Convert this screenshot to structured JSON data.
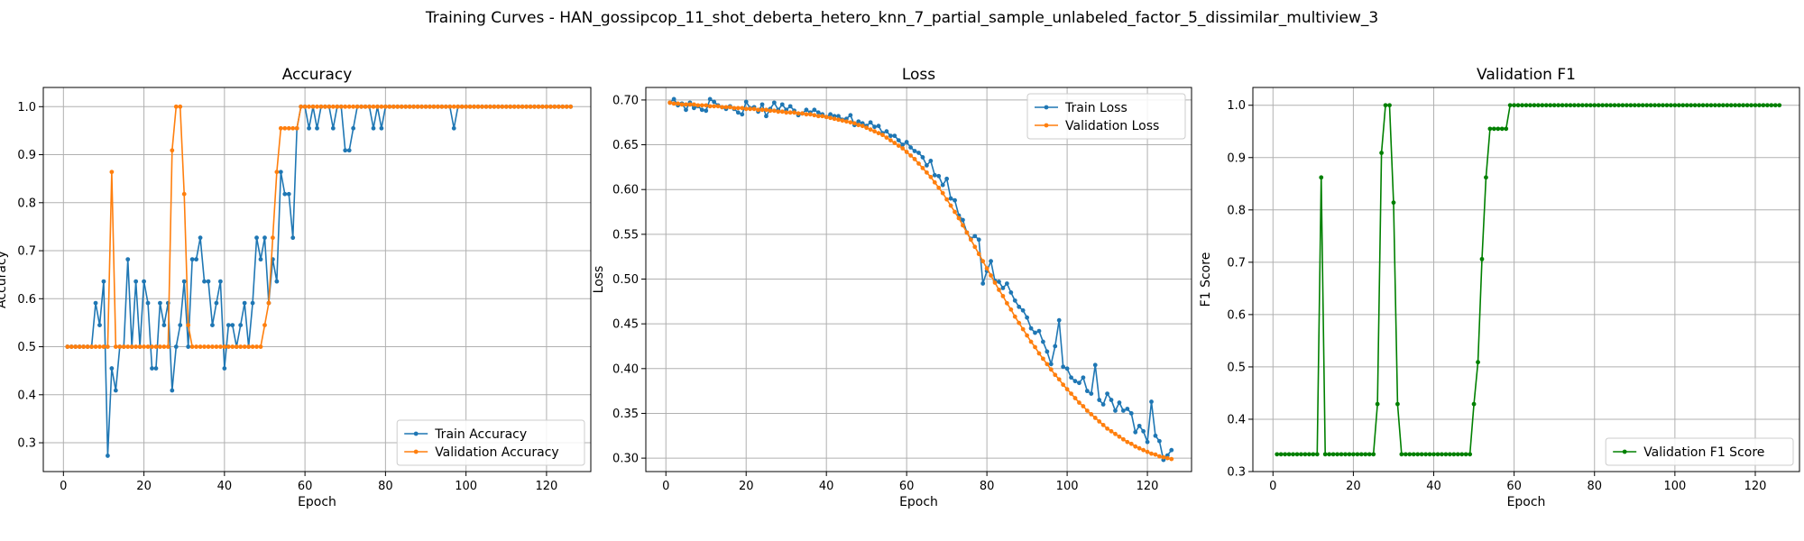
{
  "figure_title": "Training Curves - HAN_gossipcop_11_shot_deberta_hetero_knn_7_partial_sample_unlabeled_factor_5_dissimilar_multiview_3",
  "colors": {
    "blue": "#1f77b4",
    "orange": "#ff7f0e",
    "green": "#008000"
  },
  "chart_data": [
    {
      "type": "line",
      "title": "Accuracy",
      "xlabel": "Epoch",
      "ylabel": "Accuracy",
      "xlim": [
        -5,
        131
      ],
      "ylim": [
        0.24,
        1.04
      ],
      "xticks": [
        0,
        20,
        40,
        60,
        80,
        100,
        120
      ],
      "yticks": [
        0.3,
        0.4,
        0.5,
        0.6,
        0.7,
        0.8,
        0.9,
        1.0
      ],
      "ytick_labels": [
        "0.3",
        "0.4",
        "0.5",
        "0.6",
        "0.7",
        "0.8",
        "0.9",
        "1.0"
      ],
      "grid": true,
      "legend_loc": "lower-right",
      "x_start": 1,
      "series": [
        {
          "name": "Train Accuracy",
          "color": "blue",
          "values": [
            0.5,
            0.5,
            0.5,
            0.5,
            0.5,
            0.5,
            0.5,
            0.591,
            0.545,
            0.636,
            0.273,
            0.455,
            0.409,
            0.5,
            0.5,
            0.682,
            0.5,
            0.636,
            0.5,
            0.636,
            0.591,
            0.455,
            0.455,
            0.591,
            0.545,
            0.591,
            0.409,
            0.5,
            0.545,
            0.636,
            0.5,
            0.682,
            0.682,
            0.727,
            0.636,
            0.636,
            0.545,
            0.591,
            0.636,
            0.455,
            0.545,
            0.545,
            0.5,
            0.545,
            0.591,
            0.5,
            0.591,
            0.727,
            0.682,
            0.727,
            0.591,
            0.682,
            0.636,
            0.864,
            0.818,
            0.818,
            0.727,
            0.955,
            1.0,
            1.0,
            0.955,
            1.0,
            0.955,
            1.0,
            1.0,
            1.0,
            0.955,
            1.0,
            1.0,
            0.909,
            0.909,
            0.955,
            1.0,
            1.0,
            1.0,
            1.0,
            0.955,
            1.0,
            0.955,
            1.0,
            1.0,
            1.0,
            1.0,
            1.0,
            1.0,
            1.0,
            1.0,
            1.0,
            1.0,
            1.0,
            1.0,
            1.0,
            1.0,
            1.0,
            1.0,
            1.0,
            0.955,
            1.0,
            1.0,
            1.0,
            1.0,
            1.0,
            1.0,
            1.0,
            1.0,
            1.0,
            1.0,
            1.0,
            1.0,
            1.0,
            1.0,
            1.0,
            1.0,
            1.0,
            1.0,
            1.0,
            1.0,
            1.0,
            1.0,
            1.0,
            1.0,
            1.0,
            1.0,
            1.0,
            1.0,
            1.0
          ]
        },
        {
          "name": "Validation Accuracy",
          "color": "orange",
          "values": [
            0.5,
            0.5,
            0.5,
            0.5,
            0.5,
            0.5,
            0.5,
            0.5,
            0.5,
            0.5,
            0.5,
            0.864,
            0.5,
            0.5,
            0.5,
            0.5,
            0.5,
            0.5,
            0.5,
            0.5,
            0.5,
            0.5,
            0.5,
            0.5,
            0.5,
            0.5,
            0.909,
            1.0,
            1.0,
            0.818,
            0.545,
            0.5,
            0.5,
            0.5,
            0.5,
            0.5,
            0.5,
            0.5,
            0.5,
            0.5,
            0.5,
            0.5,
            0.5,
            0.5,
            0.5,
            0.5,
            0.5,
            0.5,
            0.5,
            0.545,
            0.591,
            0.727,
            0.864,
            0.955,
            0.955,
            0.955,
            0.955,
            0.955,
            1.0,
            1.0,
            1.0,
            1.0,
            1.0,
            1.0,
            1.0,
            1.0,
            1.0,
            1.0,
            1.0,
            1.0,
            1.0,
            1.0,
            1.0,
            1.0,
            1.0,
            1.0,
            1.0,
            1.0,
            1.0,
            1.0,
            1.0,
            1.0,
            1.0,
            1.0,
            1.0,
            1.0,
            1.0,
            1.0,
            1.0,
            1.0,
            1.0,
            1.0,
            1.0,
            1.0,
            1.0,
            1.0,
            1.0,
            1.0,
            1.0,
            1.0,
            1.0,
            1.0,
            1.0,
            1.0,
            1.0,
            1.0,
            1.0,
            1.0,
            1.0,
            1.0,
            1.0,
            1.0,
            1.0,
            1.0,
            1.0,
            1.0,
            1.0,
            1.0,
            1.0,
            1.0,
            1.0,
            1.0,
            1.0,
            1.0,
            1.0,
            1.0
          ]
        }
      ]
    },
    {
      "type": "line",
      "title": "Loss",
      "xlabel": "Epoch",
      "ylabel": "Loss",
      "xlim": [
        -5,
        131
      ],
      "ylim": [
        0.285,
        0.714
      ],
      "xticks": [
        0,
        20,
        40,
        60,
        80,
        100,
        120
      ],
      "yticks": [
        0.3,
        0.35,
        0.4,
        0.45,
        0.5,
        0.55,
        0.6,
        0.65,
        0.7
      ],
      "ytick_labels": [
        "0.30",
        "0.35",
        "0.40",
        "0.45",
        "0.50",
        "0.55",
        "0.60",
        "0.65",
        "0.70"
      ],
      "grid": true,
      "legend_loc": "top-right",
      "x_start": 1,
      "series": [
        {
          "name": "Train Loss",
          "color": "blue",
          "values": [
            0.697,
            0.701,
            0.694,
            0.696,
            0.689,
            0.697,
            0.691,
            0.693,
            0.689,
            0.688,
            0.701,
            0.698,
            0.694,
            0.692,
            0.69,
            0.693,
            0.69,
            0.686,
            0.684,
            0.698,
            0.691,
            0.692,
            0.687,
            0.695,
            0.682,
            0.69,
            0.697,
            0.689,
            0.695,
            0.689,
            0.693,
            0.688,
            0.683,
            0.685,
            0.689,
            0.686,
            0.689,
            0.686,
            0.684,
            0.681,
            0.684,
            0.682,
            0.682,
            0.678,
            0.679,
            0.683,
            0.672,
            0.676,
            0.674,
            0.671,
            0.675,
            0.67,
            0.671,
            0.663,
            0.665,
            0.66,
            0.66,
            0.655,
            0.65,
            0.653,
            0.647,
            0.643,
            0.641,
            0.636,
            0.627,
            0.632,
            0.616,
            0.615,
            0.605,
            0.612,
            0.59,
            0.588,
            0.571,
            0.566,
            0.552,
            0.545,
            0.548,
            0.544,
            0.495,
            0.509,
            0.52,
            0.498,
            0.497,
            0.49,
            0.495,
            0.485,
            0.476,
            0.469,
            0.465,
            0.457,
            0.445,
            0.44,
            0.442,
            0.43,
            0.419,
            0.405,
            0.425,
            0.454,
            0.402,
            0.4,
            0.39,
            0.386,
            0.384,
            0.39,
            0.375,
            0.372,
            0.404,
            0.365,
            0.36,
            0.372,
            0.365,
            0.353,
            0.362,
            0.353,
            0.355,
            0.35,
            0.329,
            0.336,
            0.33,
            0.318,
            0.363,
            0.325,
            0.319,
            0.298,
            0.303,
            0.309
          ]
        },
        {
          "name": "Validation Loss",
          "color": "orange",
          "values": [
            0.697,
            0.696,
            0.696,
            0.695,
            0.695,
            0.695,
            0.695,
            0.694,
            0.694,
            0.694,
            0.693,
            0.693,
            0.693,
            0.692,
            0.692,
            0.692,
            0.691,
            0.691,
            0.691,
            0.69,
            0.69,
            0.69,
            0.689,
            0.689,
            0.689,
            0.688,
            0.688,
            0.687,
            0.687,
            0.686,
            0.686,
            0.686,
            0.685,
            0.685,
            0.684,
            0.684,
            0.683,
            0.682,
            0.682,
            0.681,
            0.68,
            0.679,
            0.678,
            0.677,
            0.676,
            0.675,
            0.674,
            0.672,
            0.671,
            0.669,
            0.667,
            0.665,
            0.663,
            0.661,
            0.658,
            0.655,
            0.652,
            0.649,
            0.646,
            0.642,
            0.638,
            0.634,
            0.629,
            0.624,
            0.619,
            0.614,
            0.608,
            0.602,
            0.596,
            0.589,
            0.582,
            0.575,
            0.568,
            0.56,
            0.552,
            0.544,
            0.536,
            0.528,
            0.52,
            0.512,
            0.504,
            0.496,
            0.488,
            0.481,
            0.473,
            0.466,
            0.458,
            0.451,
            0.444,
            0.437,
            0.43,
            0.424,
            0.417,
            0.411,
            0.405,
            0.399,
            0.393,
            0.388,
            0.382,
            0.377,
            0.372,
            0.367,
            0.362,
            0.358,
            0.353,
            0.349,
            0.345,
            0.341,
            0.337,
            0.333,
            0.33,
            0.327,
            0.324,
            0.321,
            0.318,
            0.316,
            0.313,
            0.311,
            0.309,
            0.307,
            0.305,
            0.304,
            0.302,
            0.301,
            0.3,
            0.299
          ]
        }
      ]
    },
    {
      "type": "line",
      "title": "Validation F1",
      "xlabel": "Epoch",
      "ylabel": "F1 Score",
      "xlim": [
        -5,
        131
      ],
      "ylim": [
        0.3,
        1.034
      ],
      "xticks": [
        0,
        20,
        40,
        60,
        80,
        100,
        120
      ],
      "yticks": [
        0.3,
        0.4,
        0.5,
        0.6,
        0.7,
        0.8,
        0.9,
        1.0
      ],
      "ytick_labels": [
        "0.3",
        "0.4",
        "0.5",
        "0.6",
        "0.7",
        "0.8",
        "0.9",
        "1.0"
      ],
      "grid": true,
      "legend_loc": "lower-right",
      "x_start": 1,
      "series": [
        {
          "name": "Validation F1 Score",
          "color": "green",
          "values": [
            0.333,
            0.333,
            0.333,
            0.333,
            0.333,
            0.333,
            0.333,
            0.333,
            0.333,
            0.333,
            0.333,
            0.862,
            0.333,
            0.333,
            0.333,
            0.333,
            0.333,
            0.333,
            0.333,
            0.333,
            0.333,
            0.333,
            0.333,
            0.333,
            0.333,
            0.429,
            0.909,
            1.0,
            1.0,
            0.814,
            0.429,
            0.333,
            0.333,
            0.333,
            0.333,
            0.333,
            0.333,
            0.333,
            0.333,
            0.333,
            0.333,
            0.333,
            0.333,
            0.333,
            0.333,
            0.333,
            0.333,
            0.333,
            0.333,
            0.429,
            0.509,
            0.706,
            0.862,
            0.955,
            0.955,
            0.955,
            0.955,
            0.955,
            1.0,
            1.0,
            1.0,
            1.0,
            1.0,
            1.0,
            1.0,
            1.0,
            1.0,
            1.0,
            1.0,
            1.0,
            1.0,
            1.0,
            1.0,
            1.0,
            1.0,
            1.0,
            1.0,
            1.0,
            1.0,
            1.0,
            1.0,
            1.0,
            1.0,
            1.0,
            1.0,
            1.0,
            1.0,
            1.0,
            1.0,
            1.0,
            1.0,
            1.0,
            1.0,
            1.0,
            1.0,
            1.0,
            1.0,
            1.0,
            1.0,
            1.0,
            1.0,
            1.0,
            1.0,
            1.0,
            1.0,
            1.0,
            1.0,
            1.0,
            1.0,
            1.0,
            1.0,
            1.0,
            1.0,
            1.0,
            1.0,
            1.0,
            1.0,
            1.0,
            1.0,
            1.0,
            1.0,
            1.0,
            1.0,
            1.0,
            1.0,
            1.0
          ]
        }
      ]
    }
  ]
}
